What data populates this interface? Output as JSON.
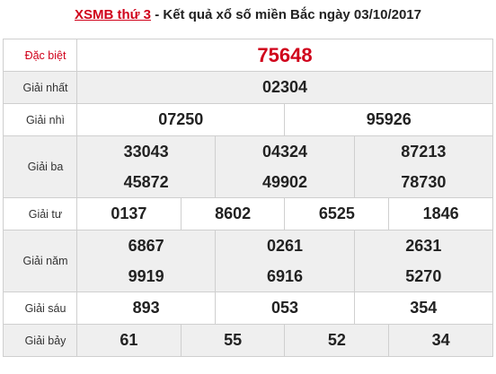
{
  "header": {
    "link_text": "XSMB thứ 3",
    "rest_text": " - Kết quả xổ số miền Bắc ngày 03/10/2017"
  },
  "prizes": {
    "special": {
      "label": "Đặc biệt",
      "numbers": [
        "75648"
      ]
    },
    "first": {
      "label": "Giải nhất",
      "numbers": [
        "02304"
      ]
    },
    "second": {
      "label": "Giải nhì",
      "numbers": [
        "07250",
        "95926"
      ]
    },
    "third": {
      "label": "Giải ba",
      "numbers": [
        "33043",
        "04324",
        "87213",
        "45872",
        "49902",
        "78730"
      ]
    },
    "fourth": {
      "label": "Giải tư",
      "numbers": [
        "0137",
        "8602",
        "6525",
        "1846"
      ]
    },
    "fifth": {
      "label": "Giải năm",
      "numbers": [
        "6867",
        "0261",
        "2631",
        "9919",
        "6916",
        "5270"
      ]
    },
    "sixth": {
      "label": "Giải sáu",
      "numbers": [
        "893",
        "053",
        "354"
      ]
    },
    "seventh": {
      "label": "Giải bảy",
      "numbers": [
        "61",
        "55",
        "52",
        "34"
      ]
    }
  },
  "colors": {
    "accent": "#d0021b",
    "alt_row": "#efefef",
    "border": "#cfcfcf"
  }
}
